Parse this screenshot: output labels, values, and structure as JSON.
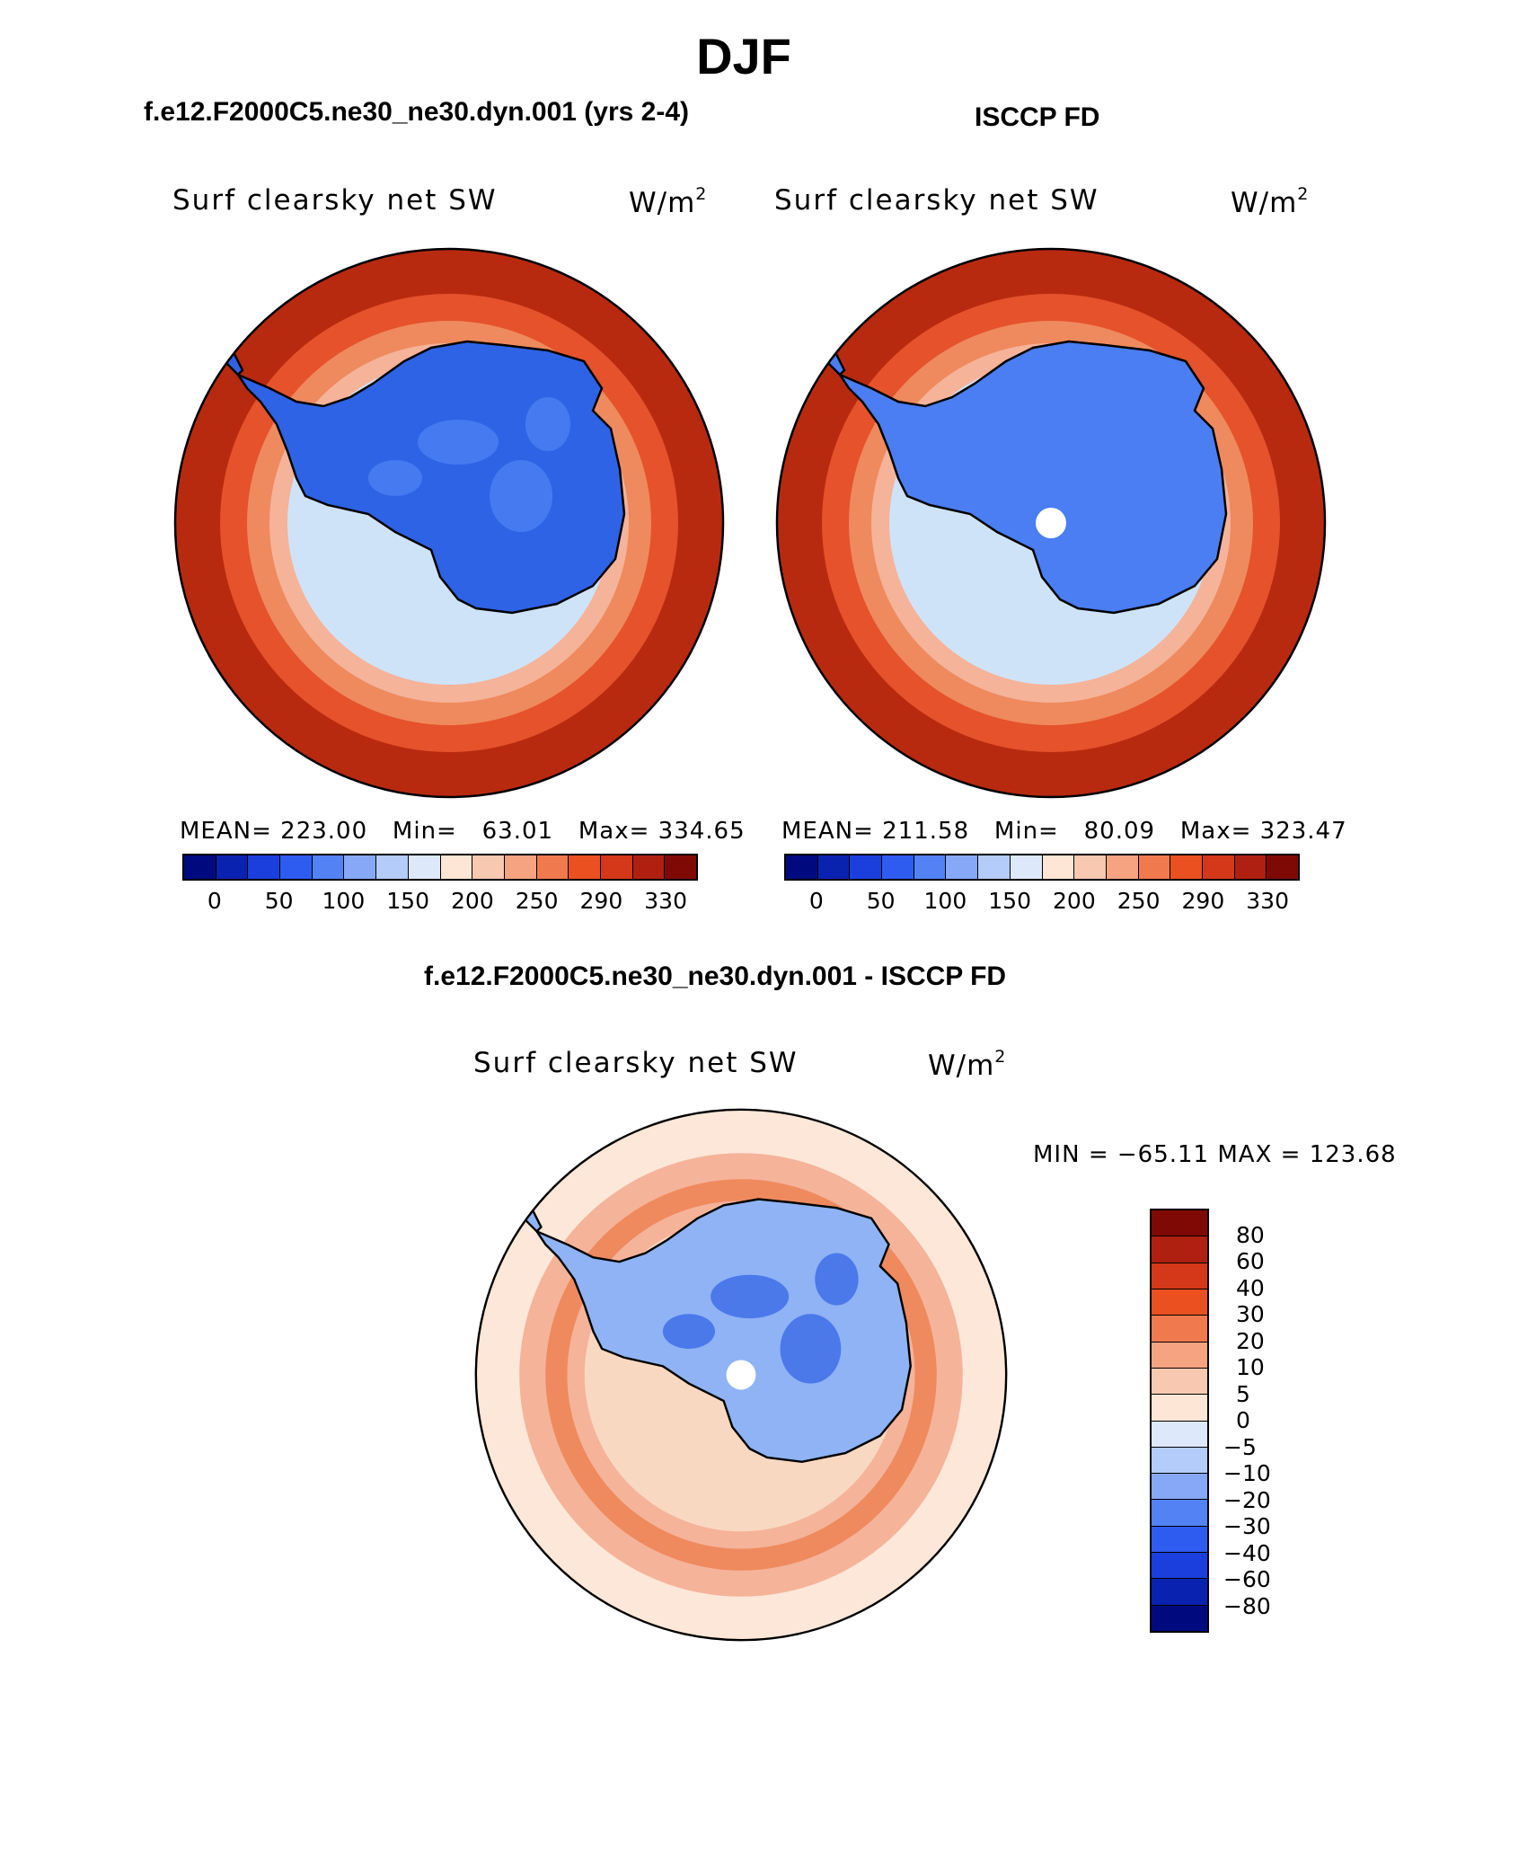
{
  "figure": {
    "title": "DJF"
  },
  "panels": [
    {
      "id": "model",
      "case_title": "f.e12.F2000C5.ne30_ne30.dyn.001 (yrs 2-4)",
      "variable": "Surf clearsky net SW",
      "units": "W/m",
      "units_sup": "2",
      "stats": {
        "text": "MEAN= 223.00   Min=   63.01   Max= 334.65",
        "mean": 223.0,
        "min": 63.01,
        "max": 334.65
      },
      "colorbar": {
        "orientation": "horizontal",
        "tick_labels": [
          "0",
          "50",
          "100",
          "150",
          "200",
          "250",
          "290",
          "330"
        ]
      },
      "field": {
        "ocean_rings": [
          "#cfe3f8",
          "#f5b39a",
          "#ef8a5e",
          "#e5522b",
          "#b82a10"
        ],
        "land": "#2f63e6",
        "land_patches": "#4a7ef2",
        "pole_hole": false
      }
    },
    {
      "id": "obs",
      "case_title": "ISCCP FD",
      "variable": "Surf clearsky net SW",
      "units": "W/m",
      "units_sup": "2",
      "stats": {
        "text": "MEAN= 211.58   Min=   80.09   Max= 323.47",
        "mean": 211.58,
        "min": 80.09,
        "max": 323.47
      },
      "colorbar": {
        "orientation": "horizontal",
        "tick_labels": [
          "0",
          "50",
          "100",
          "150",
          "200",
          "250",
          "290",
          "330"
        ]
      },
      "field": {
        "ocean_rings": [
          "#cfe3f8",
          "#f5b39a",
          "#ef8a5e",
          "#e5522b",
          "#b82a10"
        ],
        "land": "#4a7ef2",
        "land_patches": "#4a7ef2",
        "pole_hole": true
      }
    },
    {
      "id": "diff",
      "case_title": "f.e12.F2000C5.ne30_ne30.dyn.001 - ISCCP FD",
      "variable": "Surf clearsky net SW",
      "units": "W/m",
      "units_sup": "2",
      "stats": {
        "text": "MIN = −65.11 MAX = 123.68",
        "min": -65.11,
        "max": 123.68
      },
      "colorbar": {
        "orientation": "vertical",
        "tick_labels": [
          "80",
          "60",
          "40",
          "30",
          "20",
          "10",
          "5",
          "0",
          "−5",
          "−10",
          "−20",
          "−30",
          "−40",
          "−60",
          "−80"
        ]
      },
      "field": {
        "ocean_rings": [
          "#f9d8c2",
          "#f5b39a",
          "#ef8a5e",
          "#f5b39a",
          "#fde7d8"
        ],
        "land": "#8fb3f5",
        "land_patches": "#3f6fe8",
        "pole_hole": true
      }
    }
  ],
  "colorscales": {
    "absolute": [
      "#000a7f",
      "#0a22b0",
      "#1a3fdc",
      "#2e5cf0",
      "#5382f5",
      "#86a8f7",
      "#b4ccfa",
      "#dde9fb",
      "#fde6d6",
      "#f9c8b0",
      "#f5a380",
      "#f07a4e",
      "#ea5020",
      "#d43818",
      "#b02010",
      "#7f0a05"
    ],
    "difference": [
      "#7f0a05",
      "#b02010",
      "#d43818",
      "#ea5020",
      "#f07a4e",
      "#f5a380",
      "#f9c8b0",
      "#fde6d6",
      "#dde9fb",
      "#b4ccfa",
      "#86a8f7",
      "#5382f5",
      "#2e5cf0",
      "#1a3fdc",
      "#0a22b0",
      "#000a7f"
    ]
  }
}
